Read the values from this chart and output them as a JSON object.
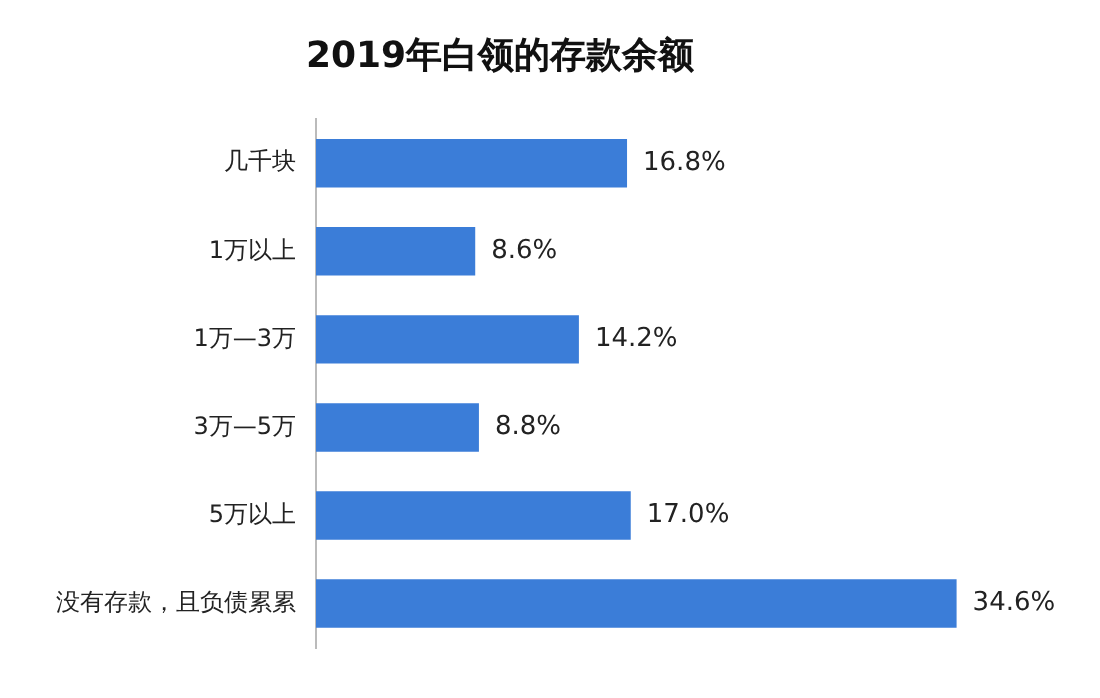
{
  "chart_data": {
    "type": "bar",
    "orientation": "horizontal",
    "title": "2019年白领的存款余额",
    "categories": [
      "几千块",
      "1万以上",
      "1万—3万",
      "3万—5万",
      "5万以上",
      "没有存款，且负债累累"
    ],
    "values": [
      16.8,
      8.6,
      14.2,
      8.8,
      17.0,
      34.6
    ],
    "value_labels": [
      "16.8%",
      "8.6%",
      "14.2%",
      "8.8%",
      "17.0%",
      "34.6%"
    ],
    "color": "#3b7dd8",
    "grid": false,
    "legend": false
  }
}
